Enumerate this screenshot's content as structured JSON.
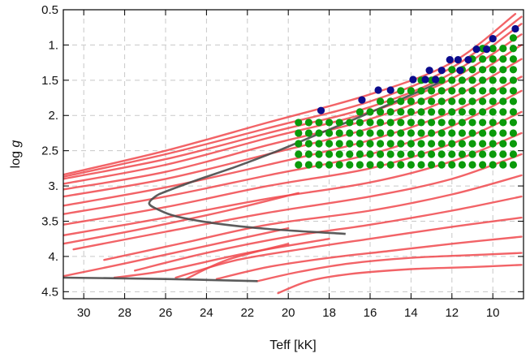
{
  "chart_data": {
    "type": "scatter",
    "xlabel": "Teff [kK]",
    "ylabel_prefix": "log ",
    "ylabel_var": "g",
    "xlim": [
      31.0,
      8.5
    ],
    "ylim": [
      0.5,
      4.6
    ],
    "x_reversed": true,
    "y_reversed": true,
    "grid": true,
    "xticks": [
      30,
      28,
      26,
      24,
      22,
      20,
      18,
      16,
      14,
      12,
      10
    ],
    "xtick_labels": [
      "30",
      "28",
      "26",
      "24",
      "22",
      "20",
      "18",
      "16",
      "14",
      "12",
      "10"
    ],
    "yticks": [
      0.5,
      1.0,
      1.5,
      2.0,
      2.5,
      3.0,
      3.5,
      4.0,
      4.5
    ],
    "ytick_labels": [
      "0.5",
      "1.",
      "1.5",
      "2.",
      "2.5",
      "3.",
      "3.5",
      "4.",
      "4.5"
    ],
    "colors": {
      "tracks": "#f0484c",
      "black_track": "#4a4a4a",
      "green_points": "#0a9a0a",
      "blue_points": "#0b0b8c",
      "grid": "#c8c8c8",
      "frame": "#000000"
    },
    "grid_points": {
      "name": "",
      "teff_start": 19.5,
      "teff_end": 8.9,
      "teff_step": 0.5,
      "logg_bottom": 2.7,
      "logg_step": 0.15,
      "upper_logg_at_teff": [
        [
          19.5,
          2.1
        ],
        [
          17.0,
          2.0
        ],
        [
          15.5,
          1.8
        ],
        [
          13.5,
          1.5
        ],
        [
          11.5,
          1.3
        ],
        [
          10.5,
          1.05
        ],
        [
          8.9,
          0.85
        ]
      ]
    },
    "blue_points": [
      [
        18.4,
        1.93
      ],
      [
        16.4,
        1.78
      ],
      [
        15.6,
        1.64
      ],
      [
        15.0,
        1.64
      ],
      [
        13.9,
        1.49
      ],
      [
        13.3,
        1.49
      ],
      [
        12.8,
        1.49
      ],
      [
        13.1,
        1.36
      ],
      [
        12.5,
        1.36
      ],
      [
        12.1,
        1.21
      ],
      [
        11.7,
        1.21
      ],
      [
        11.2,
        1.21
      ],
      [
        11.6,
        1.36
      ],
      [
        10.8,
        1.06
      ],
      [
        10.3,
        1.06
      ],
      [
        10.0,
        0.91
      ],
      [
        8.9,
        0.77
      ]
    ],
    "black_track": [
      [
        17.2,
        3.68
      ],
      [
        21.0,
        3.61
      ],
      [
        23.6,
        3.53
      ],
      [
        25.5,
        3.43
      ],
      [
        26.4,
        3.33
      ],
      [
        26.8,
        3.25
      ],
      [
        26.5,
        3.15
      ],
      [
        26.0,
        3.08
      ],
      [
        24.5,
        2.92
      ],
      [
        22.5,
        2.72
      ],
      [
        20.5,
        2.5
      ],
      [
        18.5,
        2.26
      ],
      [
        16.5,
        2.02
      ],
      [
        14.5,
        1.77
      ],
      [
        12.5,
        1.52
      ]
    ],
    "black_track_bottom": [
      [
        31.0,
        4.3
      ],
      [
        26.0,
        4.32
      ],
      [
        21.5,
        4.35
      ]
    ],
    "red_tracks": [
      [
        [
          31.0,
          2.84
        ],
        [
          26.0,
          2.5
        ],
        [
          21.0,
          2.1
        ],
        [
          16.0,
          1.7
        ],
        [
          12.0,
          1.25
        ],
        [
          8.9,
          0.56
        ]
      ],
      [
        [
          31.0,
          2.87
        ],
        [
          26.0,
          2.55
        ],
        [
          21.0,
          2.18
        ],
        [
          16.0,
          1.8
        ],
        [
          12.0,
          1.32
        ],
        [
          8.6,
          0.6
        ]
      ],
      [
        [
          31.0,
          2.9
        ],
        [
          26.0,
          2.62
        ],
        [
          21.0,
          2.25
        ],
        [
          16.0,
          1.88
        ],
        [
          12.0,
          1.4
        ],
        [
          8.6,
          0.7
        ]
      ],
      [
        [
          31.0,
          2.97
        ],
        [
          26.0,
          2.7
        ],
        [
          21.0,
          2.32
        ],
        [
          16.0,
          1.95
        ],
        [
          12.0,
          1.48
        ],
        [
          8.6,
          0.85
        ]
      ],
      [
        [
          31.0,
          3.05
        ],
        [
          26.0,
          2.8
        ],
        [
          21.0,
          2.42
        ],
        [
          16.0,
          2.05
        ],
        [
          12.0,
          1.6
        ],
        [
          8.6,
          1.0
        ]
      ],
      [
        [
          31.0,
          3.15
        ],
        [
          26.0,
          2.9
        ],
        [
          21.0,
          2.55
        ],
        [
          16.0,
          2.18
        ],
        [
          12.0,
          1.75
        ],
        [
          8.6,
          1.2
        ]
      ],
      [
        [
          31.0,
          3.28
        ],
        [
          26.0,
          3.02
        ],
        [
          21.0,
          2.7
        ],
        [
          16.0,
          2.35
        ],
        [
          12.0,
          1.95
        ],
        [
          8.6,
          1.45
        ]
      ],
      [
        [
          31.0,
          3.4
        ],
        [
          26.0,
          3.15
        ],
        [
          21.0,
          2.85
        ],
        [
          16.0,
          2.55
        ],
        [
          12.0,
          2.15
        ],
        [
          8.6,
          1.65
        ]
      ],
      [
        [
          31.0,
          3.55
        ],
        [
          26.0,
          3.3
        ],
        [
          21.0,
          3.0
        ],
        [
          16.0,
          2.75
        ],
        [
          12.0,
          2.4
        ],
        [
          8.6,
          1.95
        ]
      ],
      [
        [
          31.0,
          3.7
        ],
        [
          26.0,
          3.45
        ],
        [
          21.0,
          3.18
        ],
        [
          16.0,
          2.95
        ],
        [
          12.0,
          2.65
        ],
        [
          8.6,
          2.25
        ]
      ],
      [
        [
          30.5,
          3.9
        ],
        [
          26.0,
          3.65
        ],
        [
          21.0,
          3.38
        ],
        [
          16.0,
          3.15
        ],
        [
          12.0,
          2.9
        ],
        [
          8.6,
          2.55
        ]
      ],
      [
        [
          29.0,
          4.05
        ],
        [
          25.0,
          3.8
        ],
        [
          21.0,
          3.55
        ],
        [
          16.0,
          3.35
        ],
        [
          12.0,
          3.12
        ],
        [
          8.6,
          2.85
        ]
      ],
      [
        [
          27.5,
          4.2
        ],
        [
          24.0,
          3.95
        ],
        [
          20.0,
          3.72
        ],
        [
          16.0,
          3.55
        ],
        [
          12.0,
          3.35
        ],
        [
          8.6,
          3.15
        ]
      ],
      [
        [
          25.5,
          4.3
        ],
        [
          22.5,
          4.05
        ],
        [
          19.0,
          3.88
        ],
        [
          16.0,
          3.75
        ],
        [
          12.0,
          3.58
        ],
        [
          8.6,
          3.45
        ]
      ],
      [
        [
          23.5,
          4.32
        ],
        [
          21.0,
          4.15
        ],
        [
          18.0,
          4.02
        ],
        [
          15.0,
          3.92
        ],
        [
          12.0,
          3.82
        ],
        [
          8.6,
          3.72
        ]
      ],
      [
        [
          21.5,
          4.35
        ],
        [
          19.5,
          4.22
        ],
        [
          17.0,
          4.1
        ],
        [
          14.0,
          4.02
        ],
        [
          11.0,
          3.98
        ],
        [
          8.6,
          3.95
        ]
      ],
      [
        [
          20.5,
          4.52
        ],
        [
          19.0,
          4.35
        ],
        [
          17.0,
          4.25
        ],
        [
          14.0,
          4.18
        ],
        [
          11.0,
          4.15
        ],
        [
          8.6,
          4.12
        ]
      ],
      [
        [
          28.5,
          4.3
        ],
        [
          26.0,
          4.2
        ],
        [
          22.0,
          3.95
        ],
        [
          18.0,
          3.75
        ]
      ],
      [
        [
          31.0,
          4.28
        ],
        [
          28.0,
          4.1
        ],
        [
          24.0,
          3.85
        ],
        [
          20.0,
          3.6
        ]
      ],
      [
        [
          25.0,
          4.32
        ],
        [
          23.0,
          4.05
        ],
        [
          20.0,
          3.82
        ]
      ],
      [
        [
          31.0,
          3.82
        ],
        [
          27.0,
          3.6
        ],
        [
          23.0,
          3.35
        ],
        [
          19.5,
          3.1
        ]
      ]
    ]
  }
}
